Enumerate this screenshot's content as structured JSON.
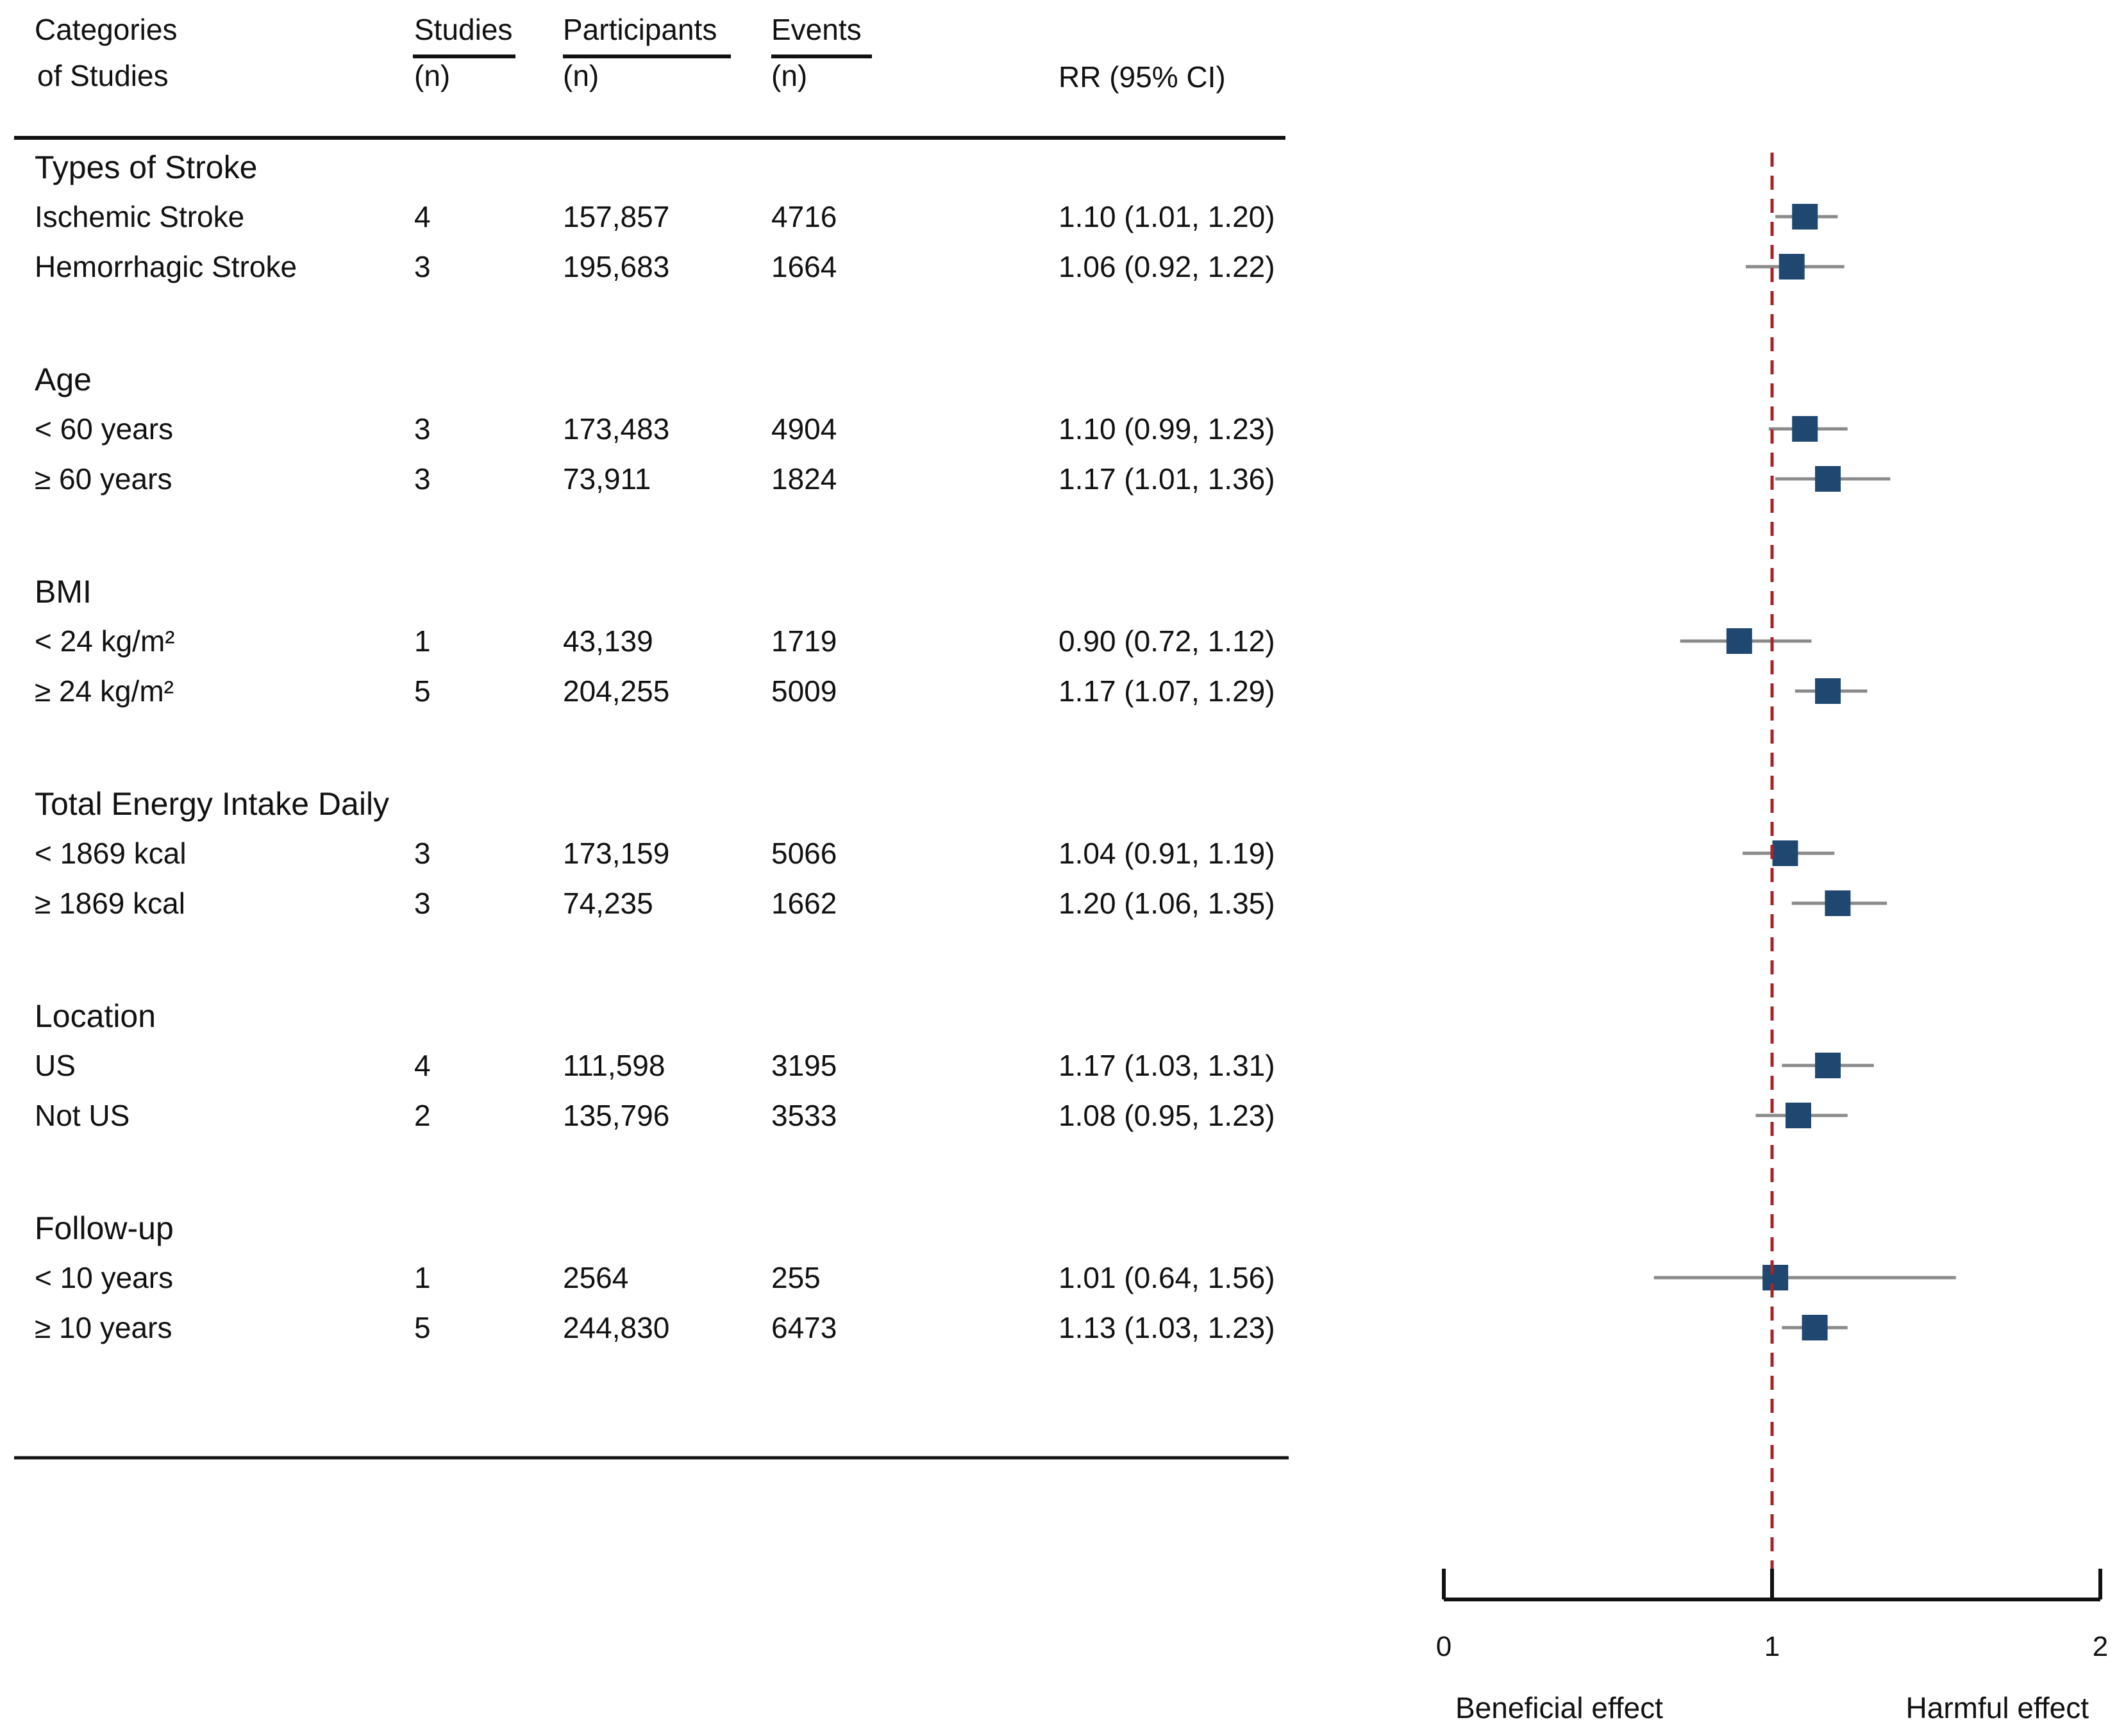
{
  "chart_data": {
    "type": "forest",
    "title": "",
    "headers": {
      "category": [
        "Categories",
        "of Studies"
      ],
      "studies": [
        "Studies",
        "(n)"
      ],
      "participants": [
        "Participants",
        "(n)"
      ],
      "events": [
        "Events",
        "(n)"
      ],
      "rr": "RR (95% CI)"
    },
    "groups": [
      {
        "label": "Types of Stroke",
        "rows": [
          {
            "label": "Ischemic Stroke",
            "studies": "4",
            "participants": "157,857",
            "events": "4716",
            "rr_text": "1.10 (1.01, 1.20)",
            "rr": 1.1,
            "lo": 1.01,
            "hi": 1.2
          },
          {
            "label": "Hemorrhagic Stroke",
            "studies": "3",
            "participants": "195,683",
            "events": "1664",
            "rr_text": "1.06 (0.92, 1.22)",
            "rr": 1.06,
            "lo": 0.92,
            "hi": 1.22
          }
        ]
      },
      {
        "label": "Age",
        "rows": [
          {
            "label": "< 60 years",
            "studies": "3",
            "participants": "173,483",
            "events": "4904",
            "rr_text": "1.10 (0.99, 1.23)",
            "rr": 1.1,
            "lo": 0.99,
            "hi": 1.23
          },
          {
            "label": "≥ 60 years",
            "studies": "3",
            "participants": "73,911",
            "events": "1824",
            "rr_text": "1.17 (1.01, 1.36)",
            "rr": 1.17,
            "lo": 1.01,
            "hi": 1.36
          }
        ]
      },
      {
        "label": "BMI",
        "rows": [
          {
            "label": "< 24 kg/m²",
            "studies": "1",
            "participants": "43,139",
            "events": "1719",
            "rr_text": "0.90 (0.72, 1.12)",
            "rr": 0.9,
            "lo": 0.72,
            "hi": 1.12
          },
          {
            "label": "≥ 24 kg/m²",
            "studies": "5",
            "participants": "204,255",
            "events": "5009",
            "rr_text": "1.17 (1.07, 1.29)",
            "rr": 1.17,
            "lo": 1.07,
            "hi": 1.29
          }
        ]
      },
      {
        "label": "Total Energy Intake Daily",
        "rows": [
          {
            "label": "< 1869 kcal",
            "studies": "3",
            "participants": "173,159",
            "events": "5066",
            "rr_text": "1.04 (0.91, 1.19)",
            "rr": 1.04,
            "lo": 0.91,
            "hi": 1.19
          },
          {
            "label": "≥ 1869 kcal",
            "studies": "3",
            "participants": "74,235",
            "events": "1662",
            "rr_text": "1.20 (1.06, 1.35)",
            "rr": 1.2,
            "lo": 1.06,
            "hi": 1.35
          }
        ]
      },
      {
        "label": "Location",
        "rows": [
          {
            "label": "US",
            "studies": "4",
            "participants": "111,598",
            "events": "3195",
            "rr_text": "1.17 (1.03, 1.31)",
            "rr": 1.17,
            "lo": 1.03,
            "hi": 1.31
          },
          {
            "label": "Not US",
            "studies": "2",
            "participants": "135,796",
            "events": "3533",
            "rr_text": "1.08 (0.95, 1.23)",
            "rr": 1.08,
            "lo": 0.95,
            "hi": 1.23
          }
        ]
      },
      {
        "label": "Follow-up",
        "rows": [
          {
            "label": "< 10 years",
            "studies": "1",
            "participants": "2564",
            "events": "255",
            "rr_text": "1.01 (0.64, 1.56)",
            "rr": 1.01,
            "lo": 0.64,
            "hi": 1.56
          },
          {
            "label": "≥ 10 years",
            "studies": "5",
            "participants": "244,830",
            "events": "6473",
            "rr_text": "1.13 (1.03, 1.23)",
            "rr": 1.13,
            "lo": 1.03,
            "hi": 1.23
          }
        ]
      }
    ],
    "x_axis": {
      "min": 0,
      "max": 2,
      "ticks": [
        "0",
        "1",
        "2"
      ],
      "reference": 1
    },
    "captions": {
      "left": "Beneficial effect",
      "right": "Harmful effect"
    },
    "colors": {
      "marker": "#1f4770",
      "ci_line": "#8a8a8a",
      "reference": "#a3262a",
      "axis": "#111111"
    }
  }
}
